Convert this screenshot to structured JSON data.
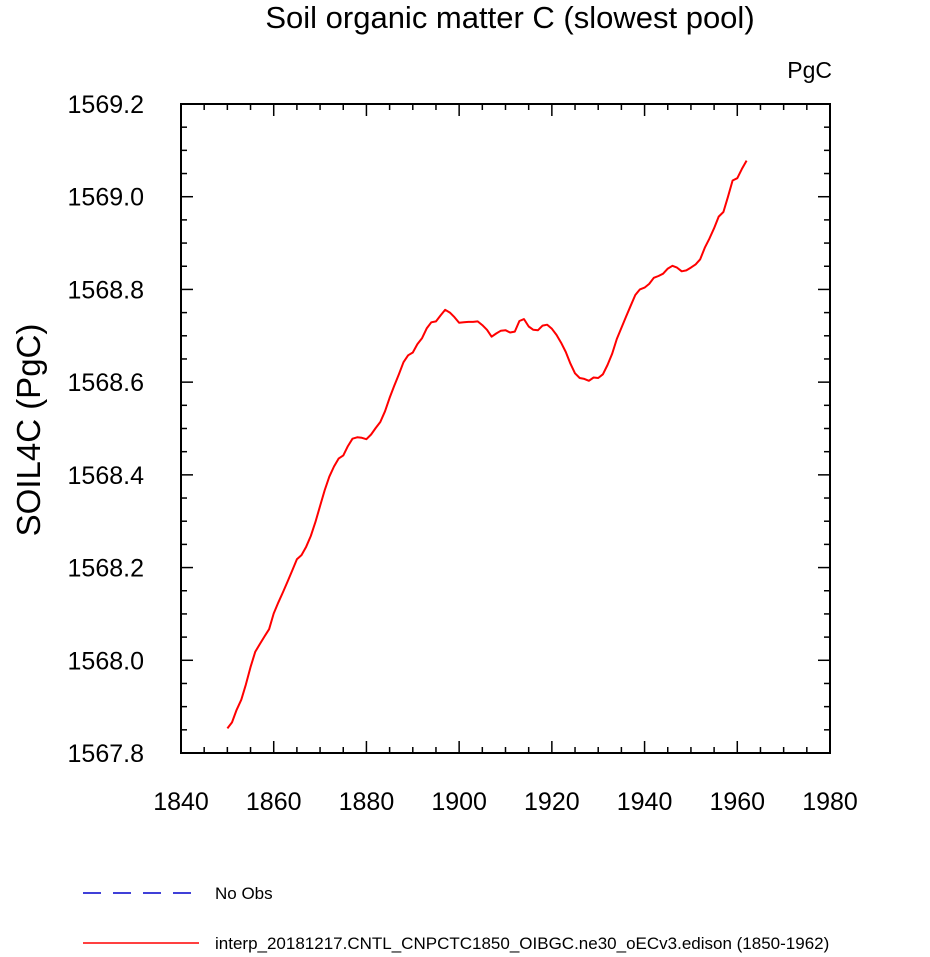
{
  "chart_data": {
    "type": "line",
    "title": "Soil organic matter C (slowest pool)",
    "units_label": "PgC",
    "xlabel": "",
    "ylabel": "SOIL4C  (PgC)",
    "xlim": [
      1840,
      1980
    ],
    "ylim": [
      1567.8,
      1569.2
    ],
    "x_ticks": [
      1840,
      1860,
      1880,
      1900,
      1920,
      1940,
      1960,
      1980
    ],
    "x_tick_labels": [
      "1840",
      "1860",
      "1880",
      "1900",
      "1920",
      "1940",
      "1960",
      "1980"
    ],
    "y_ticks": [
      1567.8,
      1568.0,
      1568.2,
      1568.4,
      1568.6,
      1568.8,
      1569.0,
      1569.2
    ],
    "y_tick_labels": [
      "1567.8",
      "1568.0",
      "1568.2",
      "1568.4",
      "1568.6",
      "1568.8",
      "1569.0",
      "1569.2"
    ],
    "grid": false,
    "legend_position": "bottom",
    "series": [
      {
        "name": "No Obs",
        "color": "#0000cc",
        "dash": "dashed",
        "x": [],
        "y": []
      },
      {
        "name": "interp_20181217.CNTL_CNPCTC1850_OIBGC.ne30_oECv3.edison (1850-1962)",
        "color": "#ff0000",
        "dash": "solid",
        "x": [
          1850,
          1851,
          1852,
          1853,
          1854,
          1855,
          1856,
          1857,
          1858,
          1859,
          1860,
          1861,
          1862,
          1863,
          1864,
          1865,
          1866,
          1867,
          1868,
          1869,
          1870,
          1871,
          1872,
          1873,
          1874,
          1875,
          1876,
          1877,
          1878,
          1879,
          1880,
          1881,
          1882,
          1883,
          1884,
          1885,
          1886,
          1887,
          1888,
          1889,
          1890,
          1891,
          1892,
          1893,
          1894,
          1895,
          1896,
          1897,
          1898,
          1899,
          1900,
          1901,
          1902,
          1903,
          1904,
          1905,
          1906,
          1907,
          1908,
          1909,
          1910,
          1911,
          1912,
          1913,
          1914,
          1915,
          1916,
          1917,
          1918,
          1919,
          1920,
          1921,
          1922,
          1923,
          1924,
          1925,
          1926,
          1927,
          1928,
          1929,
          1930,
          1931,
          1932,
          1933,
          1934,
          1935,
          1936,
          1937,
          1938,
          1939,
          1940,
          1941,
          1942,
          1943,
          1944,
          1945,
          1946,
          1947,
          1948,
          1949,
          1950,
          1951,
          1952,
          1953,
          1954,
          1955,
          1956,
          1957,
          1958,
          1959,
          1960,
          1961,
          1962
        ],
        "y": [
          1567.853,
          1567.866,
          1567.893,
          1567.915,
          1567.948,
          1567.985,
          1568.018,
          1568.035,
          1568.051,
          1568.067,
          1568.101,
          1568.125,
          1568.147,
          1568.17,
          1568.194,
          1568.218,
          1568.227,
          1568.245,
          1568.268,
          1568.298,
          1568.333,
          1568.367,
          1568.396,
          1568.418,
          1568.435,
          1568.442,
          1568.462,
          1568.478,
          1568.481,
          1568.48,
          1568.477,
          1568.487,
          1568.501,
          1568.514,
          1568.537,
          1568.566,
          1568.592,
          1568.617,
          1568.643,
          1568.658,
          1568.664,
          1568.682,
          1568.695,
          1568.716,
          1568.729,
          1568.731,
          1568.744,
          1568.756,
          1568.75,
          1568.74,
          1568.728,
          1568.729,
          1568.73,
          1568.73,
          1568.731,
          1568.723,
          1568.713,
          1568.698,
          1568.705,
          1568.711,
          1568.712,
          1568.707,
          1568.709,
          1568.732,
          1568.736,
          1568.72,
          1568.713,
          1568.712,
          1568.722,
          1568.724,
          1568.715,
          1568.702,
          1568.685,
          1568.665,
          1568.64,
          1568.619,
          1568.609,
          1568.607,
          1568.603,
          1568.61,
          1568.609,
          1568.617,
          1568.637,
          1568.661,
          1568.693,
          1568.717,
          1568.741,
          1568.765,
          1568.788,
          1568.8,
          1568.804,
          1568.812,
          1568.825,
          1568.829,
          1568.834,
          1568.845,
          1568.851,
          1568.847,
          1568.839,
          1568.841,
          1568.847,
          1568.854,
          1568.865,
          1568.89,
          1568.91,
          1568.932,
          1568.957,
          1568.967,
          1569.0,
          1569.035,
          1569.04,
          1569.06,
          1569.078
        ]
      }
    ]
  }
}
